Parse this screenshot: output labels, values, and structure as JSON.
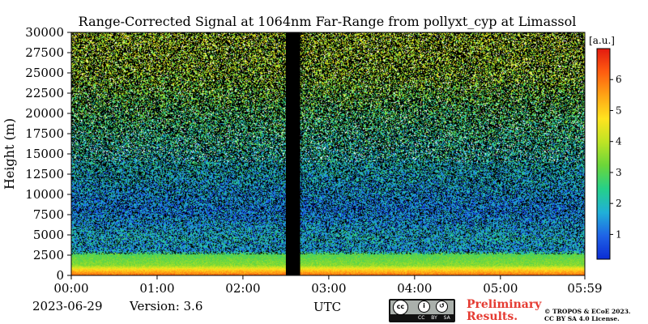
{
  "chart_data": {
    "type": "heatmap",
    "title": "Range-Corrected Signal at 1064nm Far-Range from pollyxt_cyp at Limassol",
    "ylabel": "Height (m)",
    "xlabel": "UTC",
    "x_tick_labels": [
      "00:00",
      "01:00",
      "02:00",
      "03:00",
      "04:00",
      "05:00",
      "05:59"
    ],
    "y_ticks": [
      0,
      2500,
      5000,
      7500,
      10000,
      12500,
      15000,
      17500,
      20000,
      22500,
      25000,
      27500,
      30000
    ],
    "ylim": [
      0,
      30000
    ],
    "colorbar": {
      "label": "[a.u.]",
      "range": [
        0.2,
        7.0
      ],
      "ticks": [
        1,
        2,
        3,
        4,
        5,
        6
      ],
      "colors": [
        "#0b2bd4",
        "#1f63e6",
        "#20b0d8",
        "#25d08a",
        "#6ad63a",
        "#bde425",
        "#ffe41f",
        "#ffa415",
        "#ff5d10",
        "#e31a10"
      ]
    },
    "no_data_gap": {
      "start": "02:30",
      "end": "02:40"
    },
    "profile": [
      {
        "height_m": 0,
        "value": 6.0
      },
      {
        "height_m": 600,
        "value": 5.0
      },
      {
        "height_m": 1200,
        "value": 3.5
      },
      {
        "height_m": 2500,
        "value": 3.0
      },
      {
        "height_m": 3000,
        "value": 1.5
      },
      {
        "height_m": 4500,
        "value": 1.8
      },
      {
        "height_m": 8000,
        "value": 1.2
      },
      {
        "height_m": 20000,
        "value": 2.8
      },
      {
        "height_m": 25000,
        "value": 3.8
      },
      {
        "height_m": 30000,
        "value": 4.0
      }
    ]
  },
  "footer": {
    "date": "2023-06-29",
    "version": "Version: 3.6",
    "preliminary_line1": "Preliminary",
    "preliminary_line2": "Results.",
    "copyright_line1": "© TROPOS & ECoE 2023.",
    "copyright_line2": "CC BY SA 4.0 License.",
    "license_badge": "CC BY SA"
  }
}
